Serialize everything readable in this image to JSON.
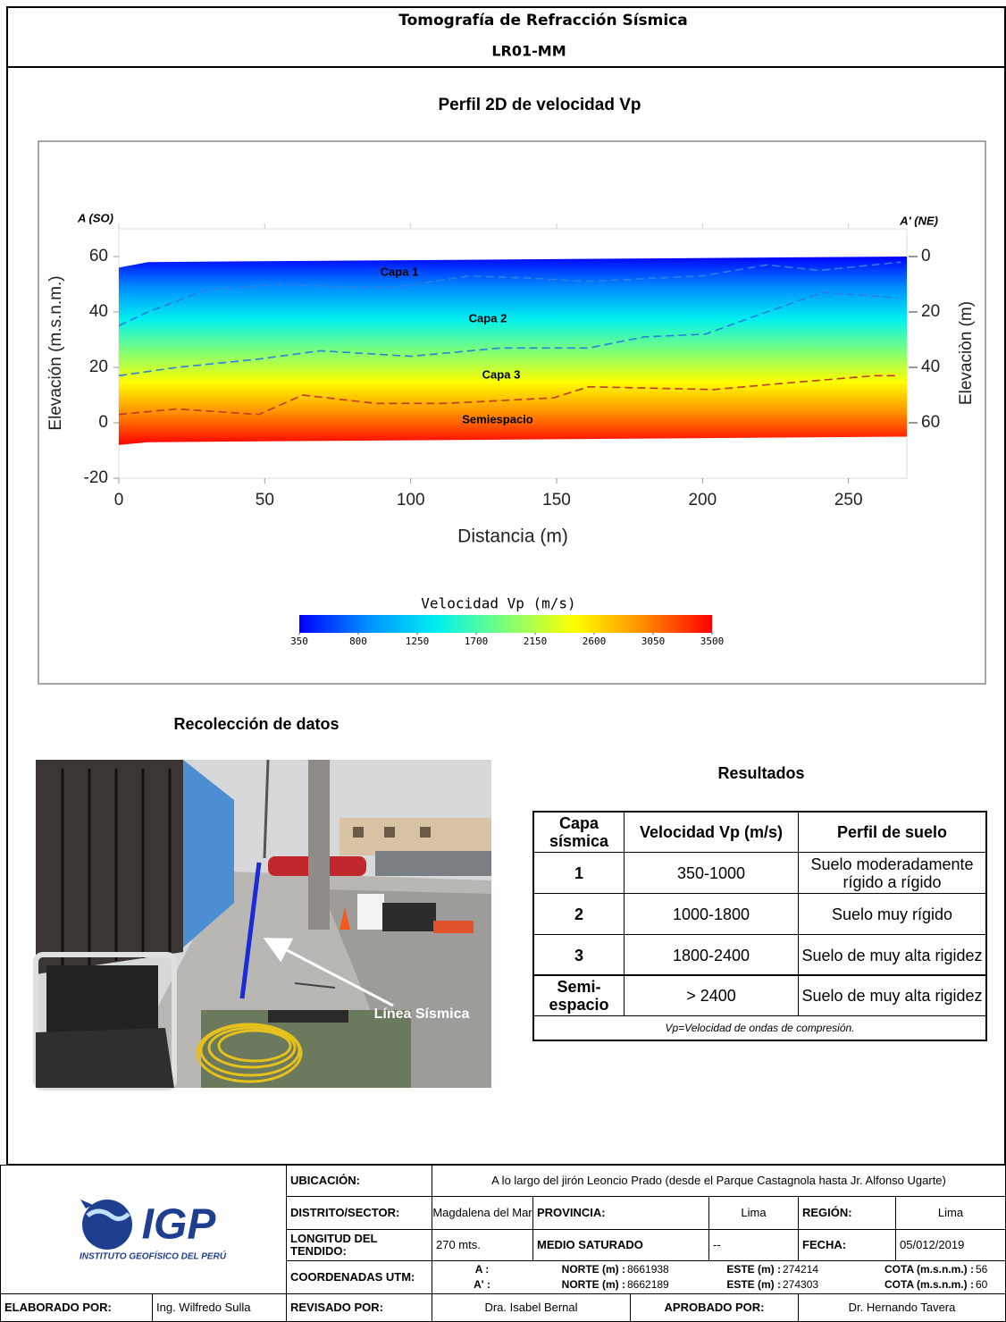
{
  "header": {
    "title": "Tomografía de Refracción Sísmica",
    "code": "LR01-MM"
  },
  "chart_data": {
    "type": "tomography",
    "title": "Perfil 2D de velocidad Vp",
    "xlabel": "Distancia (m)",
    "ylabel": "Elevación (m.s.n.m.)",
    "y2label": "Elevaciòn (m)",
    "start_label": "A (SO)",
    "end_label": "A' (NE)",
    "xlim": [
      0,
      270
    ],
    "xticks": [
      0,
      50,
      100,
      150,
      200,
      250
    ],
    "ylim": [
      -20,
      70
    ],
    "yticks": [
      -20,
      0,
      20,
      40,
      60
    ],
    "y2lim": [
      -10,
      80
    ],
    "y2ticks": [
      0,
      20,
      40,
      60
    ],
    "y2_inverted": true,
    "colormap": [
      "#0000ff",
      "#0090ff",
      "#00f0f0",
      "#7dff7a",
      "#ffff00",
      "#ff8c00",
      "#ff0000"
    ],
    "surface": {
      "x": [
        0,
        10,
        270
      ],
      "values": [
        56,
        58,
        60
      ]
    },
    "base": {
      "x": [
        0,
        10,
        270
      ],
      "values": [
        -8,
        -7,
        -5
      ]
    },
    "series": [
      {
        "color": "#2a7fe0",
        "x": [
          0,
          10,
          30,
          55,
          80,
          95,
          120,
          145,
          160,
          200,
          222,
          240,
          268
        ],
        "values": [
          35,
          40,
          48,
          50,
          49,
          49,
          53,
          52,
          51,
          53,
          57,
          55,
          58
        ]
      },
      {
        "color": "#2a7fe0",
        "x": [
          0,
          20,
          48,
          69,
          100,
          131,
          161,
          180,
          201,
          222,
          241,
          256,
          267
        ],
        "values": [
          17,
          20,
          23,
          26,
          24,
          27,
          27,
          31,
          32,
          40,
          47,
          46,
          45
        ]
      },
      {
        "color": "#c0392b",
        "x": [
          0,
          20,
          48,
          63,
          88,
          112,
          149,
          161,
          204,
          225,
          259,
          267
        ],
        "values": [
          3,
          5,
          3,
          10,
          7,
          7,
          9,
          13,
          12,
          14,
          17,
          17
        ]
      }
    ],
    "layer_labels": [
      "Capa 1",
      "Capa 2",
      "Capa 3",
      "Semiespacio"
    ],
    "colorbar": {
      "title": "Velocidad  Vp (m/s)",
      "clim": [
        350,
        3500
      ],
      "ticks": [
        350,
        800,
        1250,
        1700,
        2150,
        2600,
        3050,
        3500
      ]
    }
  },
  "photo": {
    "title": "Recolección de datos",
    "label": "Línea Sísmica"
  },
  "results": {
    "title": "Resultados",
    "headers": [
      "Capa sísmica",
      "Velocidad Vp (m/s)",
      "Perfil de suelo"
    ],
    "rows": [
      [
        "1",
        "350-1000",
        "Suelo moderadamente rígido a  rígido"
      ],
      [
        "2",
        "1000-1800",
        "Suelo muy rígido"
      ],
      [
        "3",
        "1800-2400",
        "Suelo de muy alta rigidez"
      ],
      [
        "Semi-espacio",
        "> 2400",
        "Suelo de muy alta rigidez"
      ]
    ],
    "note": "Vp=Velocidad de ondas de compresión."
  },
  "logo": {
    "name": "IGP",
    "institution": "INSTITUTO GEOFÍSICO DEL PERÚ"
  },
  "info": {
    "location_label": "UBICACIÓN:",
    "location": "A lo largo del jirón Leoncio Prado (desde el Parque Castagnola hasta Jr. Alfonso Ugarte)",
    "district_label": "DISTRITO/SECTOR:",
    "district": "Magdalena del Mar",
    "province_label": "PROVINCIA:",
    "province": "Lima",
    "region_label": "REGIÓN:",
    "region": "Lima",
    "length_label": "LONGITUD DEL TENDIDO:",
    "length": "270 mts.",
    "saturated_label": "MEDIO SATURADO",
    "saturated": "--",
    "date_label": "FECHA:",
    "date": "05/012/2019",
    "coords_label": "COORDENADAS UTM:",
    "points": [
      "A :",
      "A' :"
    ],
    "north_label": "NORTE (m) :",
    "north": [
      "8661938",
      "8662189"
    ],
    "east_label": "ESTE (m) :",
    "east": [
      "274214",
      "274303"
    ],
    "elev_label": "COTA (m.s.n.m.) :",
    "elev": [
      "56",
      "60"
    ],
    "made_label": "ELABORADO POR:",
    "made": "Ing. Wilfredo Sulla",
    "reviewed_label": "REVISADO POR:",
    "reviewed": "Dra. Isabel Bernal",
    "approved_label": "APROBADO POR:",
    "approved": "Dr. Hernando Tavera"
  }
}
